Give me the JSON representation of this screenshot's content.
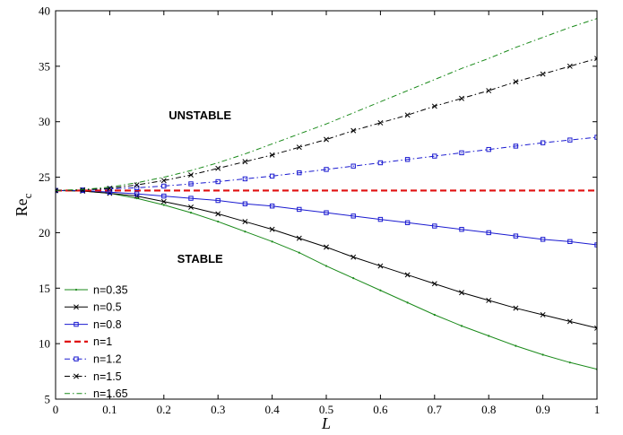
{
  "chart_data": {
    "type": "line",
    "title": "",
    "xlabel": "L",
    "ylabel": "Re",
    "ylabel_subscript": "c",
    "xlim": [
      0,
      1
    ],
    "ylim": [
      5,
      40
    ],
    "xticks": [
      0,
      0.1,
      0.2,
      0.3,
      0.4,
      0.5,
      0.6,
      0.7,
      0.8,
      0.9,
      1
    ],
    "yticks": [
      5,
      10,
      15,
      20,
      25,
      30,
      35,
      40
    ],
    "xtick_labels": [
      "0",
      "0.1",
      "0.2",
      "0.3",
      "0.4",
      "0.5",
      "0.6",
      "0.7",
      "0.8",
      "0.9",
      "1"
    ],
    "ytick_labels": [
      "5",
      "10",
      "15",
      "20",
      "25",
      "30",
      "35",
      "40"
    ],
    "grid": false,
    "legend_position": "bottom-left",
    "annotations": [
      {
        "text": "UNSTABLE",
        "x": 0.3,
        "y": 30.2
      },
      {
        "text": "STABLE",
        "x": 0.3,
        "y": 17.3
      }
    ],
    "x": [
      0,
      0.05,
      0.1,
      0.15,
      0.2,
      0.25,
      0.3,
      0.35,
      0.4,
      0.45,
      0.5,
      0.55,
      0.6,
      0.65,
      0.7,
      0.75,
      0.8,
      0.85,
      0.9,
      0.95,
      1
    ],
    "series": [
      {
        "name": "n=0.35",
        "color": "#1a8a1a",
        "dash": "solid",
        "marker": "dot",
        "values": [
          23.8,
          23.75,
          23.55,
          23.1,
          22.5,
          21.8,
          21.0,
          20.1,
          19.2,
          18.2,
          17.0,
          15.9,
          14.8,
          13.7,
          12.6,
          11.6,
          10.7,
          9.8,
          9.0,
          8.3,
          7.7
        ]
      },
      {
        "name": "n=0.5",
        "color": "#000000",
        "dash": "solid",
        "marker": "x",
        "values": [
          23.8,
          23.75,
          23.55,
          23.3,
          22.8,
          22.3,
          21.7,
          21.0,
          20.3,
          19.5,
          18.7,
          17.8,
          17.0,
          16.2,
          15.4,
          14.6,
          13.9,
          13.2,
          12.6,
          12.0,
          11.4
        ]
      },
      {
        "name": "n=0.8",
        "color": "#1a1ad0",
        "dash": "solid",
        "marker": "square",
        "values": [
          23.8,
          23.8,
          23.65,
          23.5,
          23.3,
          23.1,
          22.9,
          22.6,
          22.4,
          22.1,
          21.8,
          21.5,
          21.2,
          20.9,
          20.6,
          20.3,
          20.0,
          19.7,
          19.4,
          19.2,
          18.9
        ]
      },
      {
        "name": "n=1",
        "color": "#e01010",
        "dash": "dashed-thick",
        "marker": "none",
        "values": [
          23.8,
          23.8,
          23.8,
          23.8,
          23.8,
          23.8,
          23.8,
          23.8,
          23.8,
          23.8,
          23.8,
          23.8,
          23.8,
          23.8,
          23.8,
          23.8,
          23.8,
          23.8,
          23.8,
          23.8,
          23.8
        ]
      },
      {
        "name": "n=1.2",
        "color": "#1a1ad0",
        "dash": "dash-dot",
        "marker": "square",
        "values": [
          23.8,
          23.85,
          23.95,
          24.05,
          24.2,
          24.4,
          24.6,
          24.85,
          25.1,
          25.4,
          25.7,
          26.0,
          26.3,
          26.6,
          26.9,
          27.2,
          27.5,
          27.8,
          28.1,
          28.35,
          28.6
        ]
      },
      {
        "name": "n=1.5",
        "color": "#000000",
        "dash": "dash-dot",
        "marker": "x",
        "values": [
          23.8,
          23.85,
          24.0,
          24.3,
          24.7,
          25.2,
          25.8,
          26.4,
          27.0,
          27.7,
          28.4,
          29.2,
          29.9,
          30.6,
          31.4,
          32.1,
          32.8,
          33.6,
          34.3,
          35.0,
          35.7
        ]
      },
      {
        "name": "n=1.65",
        "color": "#1a8a1a",
        "dash": "dash-dot",
        "marker": "none",
        "values": [
          23.8,
          23.9,
          24.1,
          24.5,
          25.0,
          25.6,
          26.3,
          27.1,
          28.0,
          28.9,
          29.8,
          30.8,
          31.8,
          32.8,
          33.8,
          34.8,
          35.7,
          36.7,
          37.6,
          38.5,
          39.3
        ]
      }
    ]
  }
}
